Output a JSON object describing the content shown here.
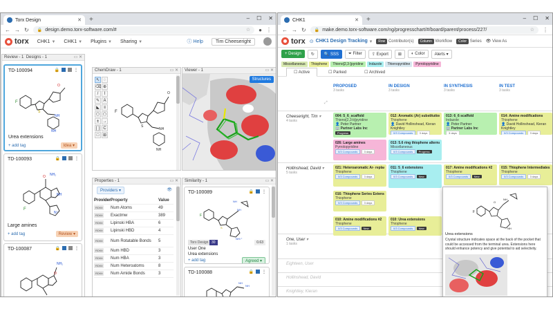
{
  "left": {
    "tab": "Torx Design",
    "url": "design.demo.torx-software.com/#",
    "nav": [
      "CHK1",
      "CHK1",
      "Plugins",
      "Sharing"
    ],
    "help": "Help",
    "user": "Tim Cheeseright",
    "review_head": "Review - 1",
    "designs_head": "Designs - 1",
    "chemdraw_head": "ChemDraw - 1",
    "viewer_head": "Viewer - 1",
    "properties_head": "Properties - 1",
    "similarity_head": "Similarity - 1",
    "cards": [
      {
        "id": "TD-100094",
        "name": "Urea extensions",
        "add": "+ add tag",
        "status": "Idea"
      },
      {
        "id": "TD-100093",
        "name": "Large amines",
        "add": "+ add tag",
        "status": "Review"
      },
      {
        "id": "TD-100087",
        "name": "",
        "add": "",
        "status": ""
      }
    ],
    "providers_label": "Providers",
    "prop_header": {
      "provider": "Provider",
      "property": "Property",
      "value": "Value"
    },
    "properties": [
      {
        "prov": "RDKit",
        "name": "Num Atoms",
        "value": "49"
      },
      {
        "prov": "RDKit",
        "name": "Exactmw",
        "value": "389"
      },
      {
        "prov": "RDKit",
        "name": "Lipinski HBA",
        "value": "6"
      },
      {
        "prov": "RDKit",
        "name": "Lipinski HBD",
        "value": "4"
      },
      {
        "prov": "RDKit",
        "name": "Num Rotatable Bonds",
        "value": "5"
      },
      {
        "prov": "RDKit",
        "name": "Num HBD",
        "value": "3"
      },
      {
        "prov": "RDKit",
        "name": "Num HBA",
        "value": "3"
      },
      {
        "prov": "RDKit",
        "name": "Num Heteroatoms",
        "value": "8"
      },
      {
        "prov": "RDKit",
        "name": "Num Amide Bonds",
        "value": "3"
      }
    ],
    "structures_btn": "Structures",
    "sim_cards": [
      {
        "id": "TD-100089",
        "badge": "Torx Design",
        "num": "30",
        "score": "0.63",
        "user": "User One",
        "name": "Urea extensions",
        "add": "+ add tag",
        "status": "Agreed"
      },
      {
        "id": "TD-100088"
      }
    ]
  },
  "right": {
    "tab": "CHK1",
    "url": "make.demo.torx-software.com/ng/progresschart/#/board/parent/process/227/",
    "project": "CHK1 Design Tracking",
    "chips": [
      {
        "chip": "Row",
        "label": "Contributor(s)"
      },
      {
        "chip": "Column",
        "label": "Workflow"
      },
      {
        "chip": "Color",
        "label": "Series"
      },
      {
        "chip": "",
        "label": "View As"
      }
    ],
    "toolbar": {
      "design": "Design",
      "sss": "SSS",
      "filter": "Filter",
      "export": "Export",
      "color": "Color",
      "alerts": "Alerts"
    },
    "tags": [
      {
        "label": "Miscellaneous",
        "bg": "#d7e8b0"
      },
      {
        "label": "Thiophene",
        "bg": "#e8ee98"
      },
      {
        "label": "Thieno[2,3-]pyridine",
        "bg": "#b8f0b0"
      },
      {
        "label": "Indazole",
        "bg": "#a8eef0"
      },
      {
        "label": "Thienopyridine",
        "bg": "#d8e8f0"
      },
      {
        "label": "Pyrrolopyridine",
        "bg": "#f6b6d8"
      }
    ],
    "view_tabs": [
      "Active",
      "Parked",
      "Archived"
    ],
    "columns": [
      {
        "name": "PROPOSED",
        "count": "3 tasks"
      },
      {
        "name": "IN DESIGN",
        "count": "3 tasks"
      },
      {
        "name": "IN SYNTHESIS",
        "count": "3 tasks"
      },
      {
        "name": "IN TEST",
        "count": "3 tasks"
      }
    ],
    "lanes": [
      {
        "name": "Cheeseright, Tim",
        "count": "4 tasks"
      },
      {
        "name": "Hollinshead, David",
        "count": "5 tasks"
      },
      {
        "name": "One, User",
        "count": "1 tasks"
      },
      {
        "name": "Eighteen, User",
        "count": ""
      },
      {
        "name": "Hollinshead, David",
        "count": ""
      },
      {
        "name": "Knightley, Kieran",
        "count": ""
      }
    ],
    "tasks": [
      {
        "title": "004: 5_6_scaffold",
        "sub": "Thieno[2,3-b]pyridine",
        "meta": "Peter Partner",
        "meta2": "Partner Labs Inc",
        "pill": "Progress",
        "color": "c-green"
      },
      {
        "title": "012: Aromatic (Ar) substitutions",
        "sub": "Thiophene",
        "meta": "David Hollinshead, Kieran Knightley",
        "comp": "0/3 Compounds",
        "days": "3 days",
        "color": "c-yellow"
      },
      {
        "title": "013: 6_6 scaffold",
        "sub": "Indazole",
        "meta": "Peter Partner",
        "meta2": "Partner Labs Inc",
        "days": "3 days",
        "color": "c-green"
      },
      {
        "title": "014: Amine modifications",
        "sub": "Thiophene",
        "meta": "David Hollinshead, Kieran Knightley",
        "comp": "0/3 Compounds",
        "days": "3 days",
        "color": "c-yellow"
      },
      {
        "title": "026: Large amines",
        "sub": "Pyrrolopyridine",
        "comp": "0/3 Compounds",
        "days": "3 days",
        "color": "c-pink"
      },
      {
        "title": "013: 5.6 ring thiophene alternatives",
        "sub": "Miscellaneous",
        "comp": "0/3 Compounds",
        "pill": "Progress",
        "color": "c-cyan"
      },
      {
        "title": "021: Heteroaromatic Ar- replacements",
        "sub": "Thiophene",
        "comp": "0/3 Compounds",
        "days": "3 days",
        "color": "c-yellow"
      },
      {
        "title": "011: 5_6 extensions",
        "sub": "Thiophene",
        "comp": "0/3 Compounds",
        "pill": "New",
        "color": "c-cyan"
      },
      {
        "title": "017: Amine modifications #2",
        "sub": "Thiophene",
        "comp": "0/3 Compounds",
        "pill": "New",
        "color": "c-yellow"
      },
      {
        "title": "015: Thiophene Intermediates",
        "sub": "Thiophene",
        "comp": "0/3 Compounds",
        "days": "3 days",
        "color": "c-yellow"
      },
      {
        "title": "016: Thiophene Series Extension",
        "sub": "Thiophene",
        "comp": "0/3 Compounds",
        "days": "3 days",
        "color": "c-yellow"
      },
      {
        "title": "010: Amine modifications #2",
        "sub": "Thiophene",
        "comp": "0/3 Compounds",
        "pill": "New",
        "color": "c-yellow"
      },
      {
        "title": "010: Urea extensions",
        "sub": "Thiophene",
        "comp": "0/3 Compounds",
        "pill": "New",
        "color": "c-yellow"
      }
    ],
    "popup": {
      "title": "Urea extensions",
      "text": "Crystal structure indicates space at the back of the pocket that could be accessed from the terminal urea. Extensions here should enhance potency and give potential to aid selectivity."
    }
  }
}
